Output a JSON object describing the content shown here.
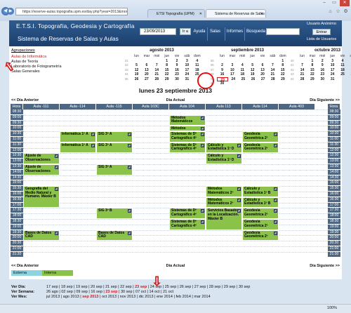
{
  "browser": {
    "url": "https://reserve-aulas.topografia.upm.es/day.php?year=2013&month=9&day",
    "tab1": "ETSI Topografía (UPM)",
    "tab2": "Sistema de Reservas de Salas"
  },
  "header": {
    "title1": "E.T.S.I. Topografía, Geodesia y Cartografía",
    "title2": "Sistema de Reservas de Salas y Aulas",
    "date_value": "23/09/2013",
    "go_label": "Ir a",
    "menu": {
      "ayuda": "Ayuda",
      "salas": "Salas",
      "informes": "Informes",
      "busqueda": "Búsqueda"
    },
    "user": "Usuario Anónimo",
    "enter": "Entrar",
    "user_list": "Lista de Usuarios"
  },
  "areas": {
    "title": "Agrupaciones",
    "items": [
      "Aulas de Informática",
      "Aulas de Teoría",
      "Laboratorio de Fotogrametría",
      "Salas Generales"
    ]
  },
  "calendars": [
    {
      "title": "agosto 2013",
      "days": [
        "lun",
        "mar",
        "mié",
        "jue",
        "vie",
        "sáb",
        "dom"
      ],
      "rows": [
        [
          "31",
          "",
          "",
          "",
          "1",
          "2",
          "3",
          "4"
        ],
        [
          "32",
          "5",
          "6",
          "7",
          "8",
          "9",
          "10",
          "11"
        ],
        [
          "33",
          "12",
          "13",
          "14",
          "15",
          "16",
          "17",
          "18"
        ],
        [
          "34",
          "19",
          "20",
          "21",
          "22",
          "23",
          "24",
          "25"
        ],
        [
          "35",
          "26",
          "27",
          "28",
          "29",
          "30",
          "31",
          ""
        ]
      ]
    },
    {
      "title": "septiembre 2013",
      "days": [
        "lun",
        "mar",
        "mié",
        "jue",
        "vie",
        "sáb",
        "dom"
      ],
      "rows": [
        [
          "35",
          "",
          "",
          "",
          "",
          "",
          "",
          "1"
        ],
        [
          "36",
          "2",
          "3",
          "4",
          "5",
          "6",
          "7",
          "8"
        ],
        [
          "37",
          "9",
          "10",
          "11",
          "12",
          "13",
          "14",
          "15"
        ],
        [
          "38",
          "16",
          "17",
          "18",
          "19",
          "20",
          "21",
          "22"
        ],
        [
          "39",
          "23",
          "24",
          "25",
          "26",
          "27",
          "28",
          "29"
        ],
        [
          "40",
          "30",
          "",
          "",
          "",
          "",
          "",
          ""
        ]
      ]
    },
    {
      "title": "octubre 2013",
      "days": [
        "lun",
        "mar",
        "mié",
        "jue",
        "vie",
        "sáb",
        "dom"
      ],
      "rows": [
        [
          "40",
          "",
          "1",
          "2",
          "3",
          "4",
          "5",
          "6"
        ],
        [
          "41",
          "7",
          "8",
          "9",
          "10",
          "11",
          "12",
          "13"
        ],
        [
          "42",
          "14",
          "15",
          "16",
          "17",
          "18",
          "19",
          "20"
        ],
        [
          "43",
          "21",
          "22",
          "23",
          "24",
          "25",
          "26",
          "27"
        ],
        [
          "44",
          "28",
          "29",
          "30",
          "31",
          "",
          "",
          ""
        ]
      ]
    }
  ],
  "day_title": "lunes 23 septiembre 2013",
  "nav": {
    "prev": "<< Día Anterior",
    "current": "Día Actual",
    "next": "Día Siguiente >>"
  },
  "grid": {
    "hour_label": "Hora",
    "rooms": [
      "Aula -111",
      "Aula -114",
      "Aula -115",
      "Aula 103C",
      "Aula 104",
      "Aula 113",
      "Aula 114",
      "Aula 403"
    ],
    "times": [
      "08:30",
      "09:00",
      "09:30",
      "10:00",
      "10:30",
      "11:00",
      "11:30",
      "12:00",
      "12:30",
      "13:00",
      "13:30",
      "14:00",
      "14:30",
      "15:00",
      "15:30",
      "16:00",
      "16:30",
      "17:00",
      "17:30",
      "18:00",
      "18:30",
      "19:00",
      "19:30",
      "20:00",
      "20:30",
      "21:00",
      "21:30"
    ],
    "bookings": [
      {
        "room": 4,
        "start": 1,
        "span": 2,
        "text": "Métodos Matemáticos"
      },
      {
        "room": 4,
        "start": 3,
        "span": 1,
        "text": "Métodos Matemáticos"
      },
      {
        "room": 4,
        "start": 4,
        "span": 2,
        "text": "Sistemas de Dº Cartográfico 4º"
      },
      {
        "room": 4,
        "start": 6,
        "span": 2,
        "text": "Sistemas de Dº Cartográfico 4º"
      },
      {
        "room": 1,
        "start": 4,
        "span": 2,
        "text": "Informática 1º A"
      },
      {
        "room": 1,
        "start": 6,
        "span": 2,
        "text": "Informática 1º A"
      },
      {
        "room": 2,
        "start": 4,
        "span": 2,
        "text": "SIG 3º A"
      },
      {
        "room": 2,
        "start": 6,
        "span": 2,
        "text": "SIG 3º A"
      },
      {
        "room": 2,
        "start": 10,
        "span": 2,
        "text": "SIG 3º A"
      },
      {
        "room": 0,
        "start": 8,
        "span": 2,
        "text": "Ajuste de Observaciones"
      },
      {
        "room": 0,
        "start": 10,
        "span": 2,
        "text": "Ajuste de Observaciones"
      },
      {
        "room": 5,
        "start": 6,
        "span": 2,
        "text": "Cálculo y Estadística 1º D"
      },
      {
        "room": 5,
        "start": 8,
        "span": 2,
        "text": "Cálculo y Estadística 1º D"
      },
      {
        "room": 6,
        "start": 4,
        "span": 2,
        "text": "Geodesia Geométrica 2º"
      },
      {
        "room": 6,
        "start": 6,
        "span": 2,
        "text": "Geodesia Geométrica 2º"
      },
      {
        "room": 0,
        "start": 14,
        "span": 4,
        "text": "Geografía del Medio Natural y Humano. Máster B"
      },
      {
        "room": 5,
        "start": 14,
        "span": 2,
        "text": "Métodos Matemáticos 2º"
      },
      {
        "room": 5,
        "start": 16,
        "span": 2,
        "text": "Métodos Matemáticos 2º"
      },
      {
        "room": 6,
        "start": 14,
        "span": 2,
        "text": "Cálculo y Estadística 1º B"
      },
      {
        "room": 6,
        "start": 16,
        "span": 2,
        "text": "Cálculo y Estadística 1º B"
      },
      {
        "room": 2,
        "start": 18,
        "span": 2,
        "text": "SIG 3º B"
      },
      {
        "room": 4,
        "start": 18,
        "span": 2,
        "text": "Sistemas de Dº Cartográfico 4º"
      },
      {
        "room": 4,
        "start": 20,
        "span": 2,
        "text": "Sistemas de Dº Cartográfico 4º"
      },
      {
        "room": 5,
        "start": 18,
        "span": 4,
        "text": "Servicios Basados en la Localización. Máster B"
      },
      {
        "room": 6,
        "start": 18,
        "span": 2,
        "text": "Geodesia Geométrica 2º"
      },
      {
        "room": 6,
        "start": 20,
        "span": 2,
        "text": "Geodesia Geométrica 2º"
      },
      {
        "room": 0,
        "start": 22,
        "span": 2,
        "text": "Bases de Datos CAD"
      },
      {
        "room": 2,
        "start": 22,
        "span": 2,
        "text": "Bases de Datos CAD"
      },
      {
        "room": 6,
        "start": 22,
        "span": 2,
        "text": "Geodesia Geométrica 2º"
      }
    ]
  },
  "legend": {
    "external": "Externa",
    "internal": "Interna"
  },
  "bottom": {
    "day_label": "Ver Día:",
    "days": [
      "17 sep",
      "18 sep",
      "19 sep",
      "20 sep",
      "21 sep",
      "22 sep",
      "23 sep",
      "24 sep",
      "25 sep",
      "26 sep",
      "27 sep",
      "28 sep",
      "29 sep",
      "30 sep"
    ],
    "week_label": "Ver Semana:",
    "weeks": [
      "26 ago",
      "02 sep",
      "09 sep",
      "16 sep",
      "23 sep",
      "30 sep",
      "07 oct",
      "14 oct",
      "21 oct"
    ],
    "month_label": "Ver Mes:",
    "months": [
      "jul 2013",
      "ago 2013",
      "sep 2013",
      "oct 2013",
      "nov 2013",
      "dic 2013",
      "ene 2014",
      "feb 2014",
      "mar 2014"
    ],
    "selected_day": "23 sep",
    "selected_week": "23 sep",
    "selected_month": "sep 2013"
  },
  "status": {
    "zoom": "100%"
  },
  "colors": {
    "internal": "#8bc34a",
    "external": "#8fd3e0",
    "header": "#1c3f6c"
  }
}
